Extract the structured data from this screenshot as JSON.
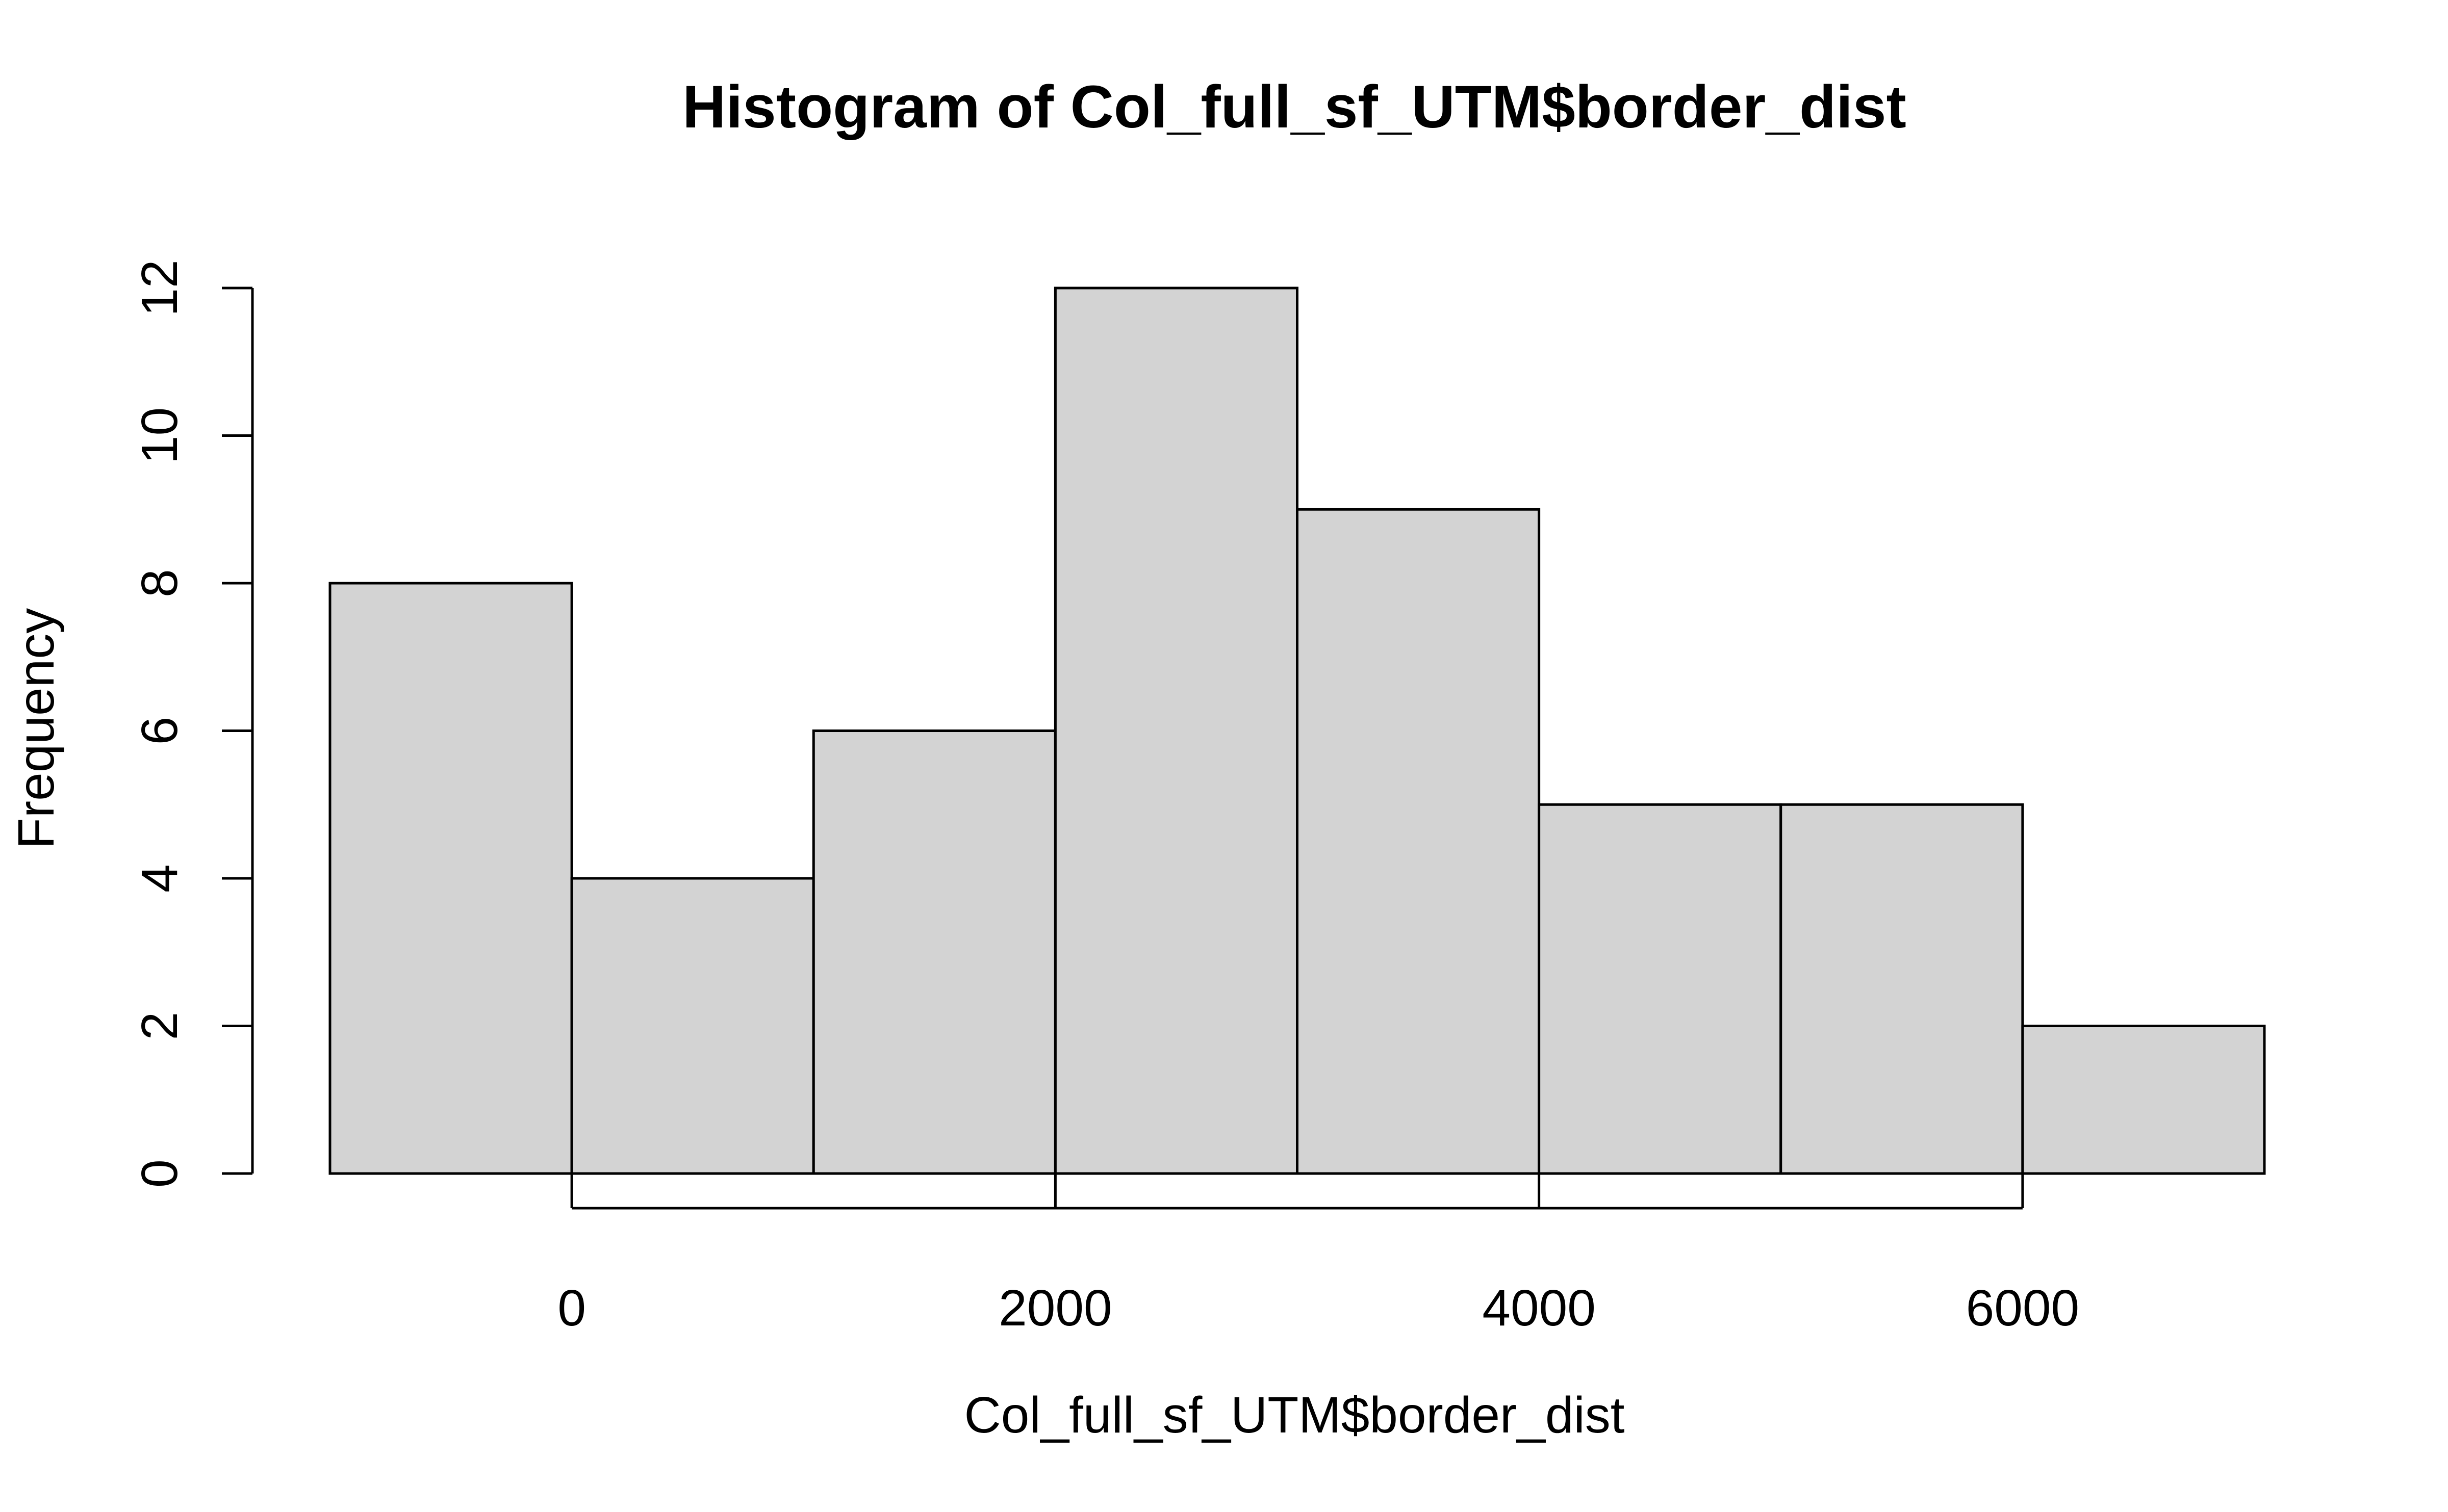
{
  "chart_data": {
    "type": "bar",
    "title": "Histogram of Col_full_sf_UTM$border_dist",
    "xlabel": "Col_full_sf_UTM$border_dist",
    "ylabel": "Frequency",
    "bins": [
      {
        "start": -1000,
        "end": 0,
        "count": 8
      },
      {
        "start": 0,
        "end": 1000,
        "count": 4
      },
      {
        "start": 1000,
        "end": 2000,
        "count": 6
      },
      {
        "start": 2000,
        "end": 3000,
        "count": 12
      },
      {
        "start": 3000,
        "end": 4000,
        "count": 9
      },
      {
        "start": 4000,
        "end": 5000,
        "count": 5
      },
      {
        "start": 5000,
        "end": 6000,
        "count": 5
      },
      {
        "start": 6000,
        "end": 7000,
        "count": 2
      }
    ],
    "xlim": [
      -1000,
      7000
    ],
    "ylim": [
      0,
      12
    ],
    "x_ticks": [
      0,
      2000,
      4000,
      6000
    ],
    "y_ticks": [
      0,
      2,
      4,
      6,
      8,
      10,
      12
    ],
    "bar_color": "#d3d3d3",
    "grid": false
  }
}
